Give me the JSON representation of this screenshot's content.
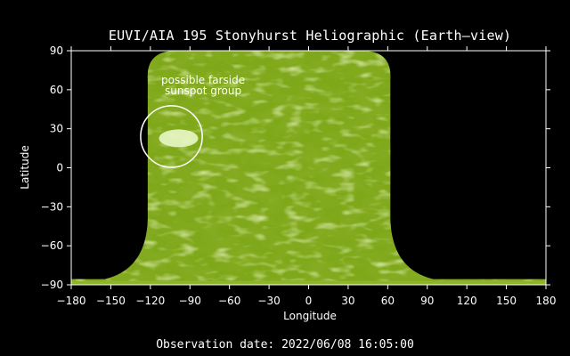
{
  "title": "EUVI/AIA 195 Stonyhurst Heliographic (Earth—view)",
  "footer": "Observation date: 2022/06/08 16:05:00",
  "annotation": {
    "line1": "possible farside",
    "line2": "sunspot group",
    "center_lon": -104,
    "center_lat": 24,
    "radius_deg": 20
  },
  "colors": {
    "background": "#000000",
    "sun_base": "#7fa81f",
    "sun_dark": "#3e6b06",
    "sun_bright": "#d8ef9a"
  },
  "chart_data": {
    "type": "heatmap",
    "xlabel": "Longitude",
    "ylabel": "Latitude",
    "xlim": [
      -180,
      180
    ],
    "ylim": [
      -90,
      90
    ],
    "xticks": [
      -180,
      -150,
      -120,
      -90,
      -60,
      -30,
      0,
      30,
      60,
      90,
      120,
      150,
      180
    ],
    "yticks": [
      90,
      60,
      30,
      0,
      -30,
      -60,
      -90
    ],
    "xtick_labels": [
      "−180",
      "−150",
      "−120",
      "−90",
      "−60",
      "−30",
      "0",
      "30",
      "60",
      "90",
      "120",
      "150",
      "180"
    ],
    "ytick_labels": [
      "90",
      "60",
      "30",
      "0",
      "−30",
      "−60",
      "−90"
    ],
    "coverage_lon_range": [
      -122,
      62
    ],
    "polar_strip_lat_range": [
      -90,
      -87
    ]
  }
}
